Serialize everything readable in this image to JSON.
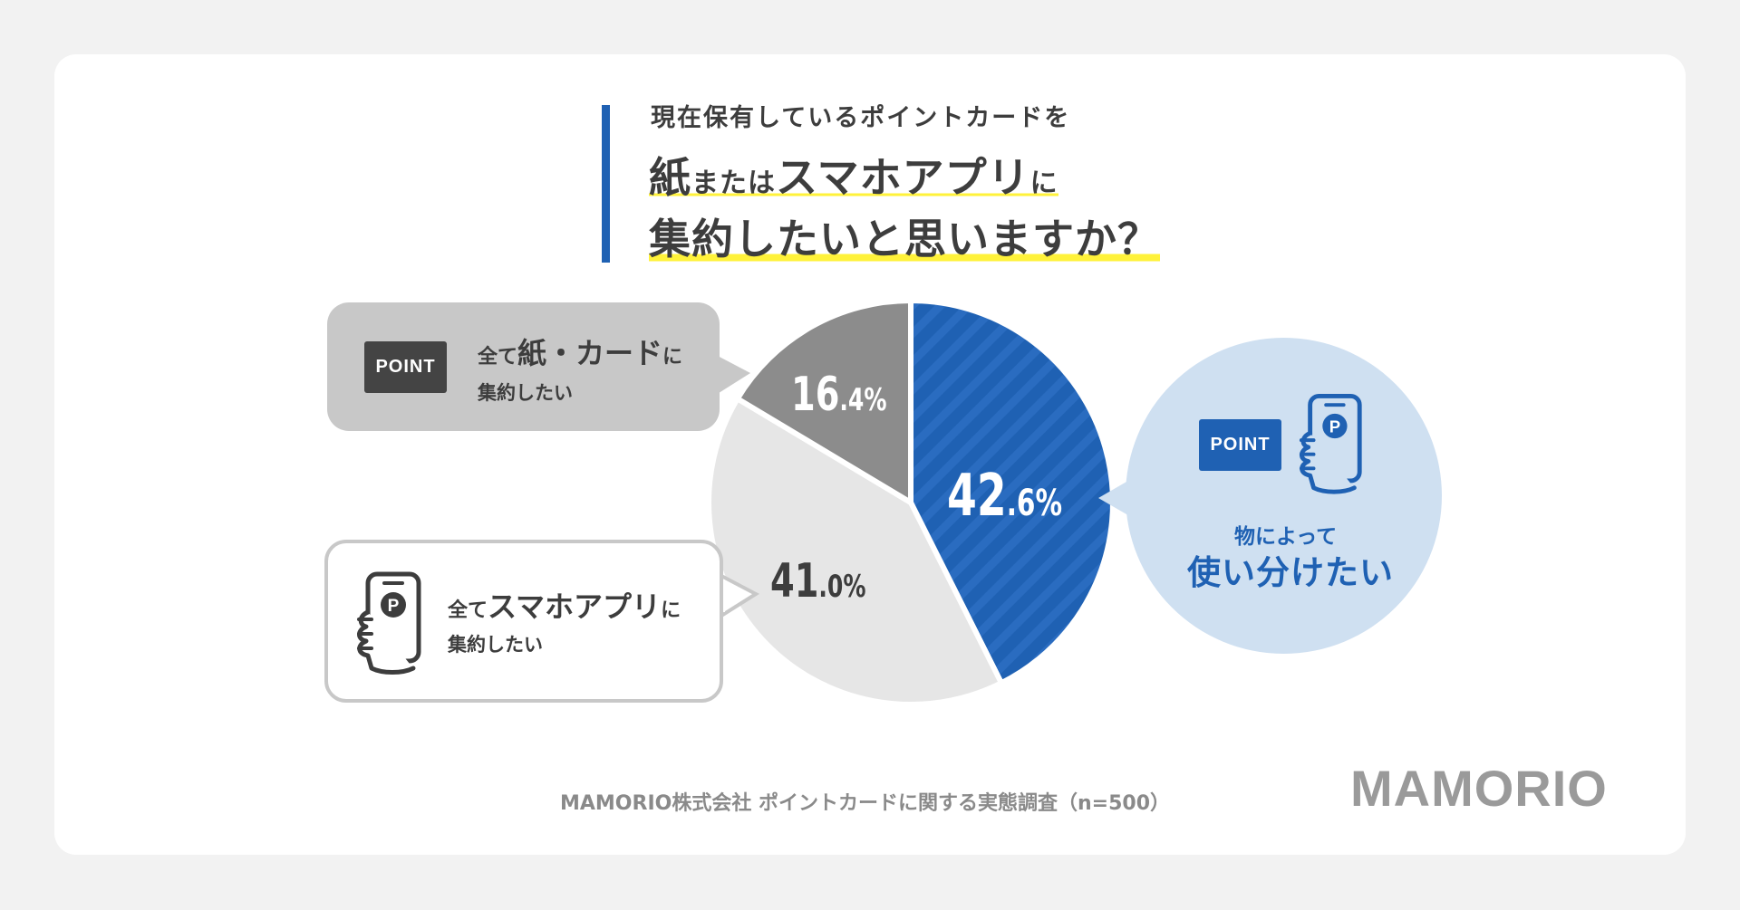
{
  "title": {
    "line1": "現在保有しているポイントカードを",
    "line2_a": "紙",
    "line2_b": "または",
    "line2_c": "スマホアプリ",
    "line2_d": "に",
    "line3": "集約したいと思いますか？"
  },
  "chart_data": {
    "type": "pie",
    "slices": [
      {
        "label": "物によって使い分けたい",
        "value": 42.6,
        "color": "#1f61b3",
        "pattern": "diagonal-stripes"
      },
      {
        "label": "全てスマホアプリに集約したい",
        "value": 41.0,
        "color": "#e6e6e6"
      },
      {
        "label": "全て紙・カードに集約したい",
        "value": 16.4,
        "color": "#8c8c8c"
      }
    ],
    "pct_labels": [
      {
        "int": "42",
        "dec": ".6%"
      },
      {
        "int": "41",
        "dec": ".0%"
      },
      {
        "int": "16",
        "dec": ".4%"
      }
    ]
  },
  "callouts": {
    "paper": {
      "badge": "POINT",
      "l1_a": "全て",
      "l1_b": "紙・カード",
      "l1_c": "に",
      "l2": "集約したい"
    },
    "app": {
      "l1_a": "全て",
      "l1_b": "スマホアプリ",
      "l1_c": "に",
      "l2": "集約したい",
      "icon": "phone-point-icon"
    },
    "mixed": {
      "badge": "POINT",
      "l1": "物によって",
      "l2": "使い分けたい",
      "icon": "phone-point-icon"
    }
  },
  "footer": "MAMORIO株式会社 ポイントカードに関する実態調査（n=500）",
  "logo": "MAMORIO"
}
